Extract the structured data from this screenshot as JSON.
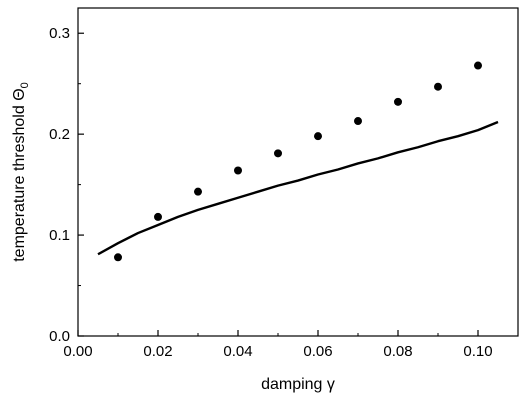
{
  "chart_data": {
    "type": "scatter",
    "title": "",
    "xlabel": "damping γ",
    "ylabel": "temperature threshold Θ",
    "ylabel_subscript": "0",
    "xlim": [
      0.0,
      0.11
    ],
    "ylim": [
      0.0,
      0.325
    ],
    "x_ticks": [
      "0.00",
      "0.02",
      "0.04",
      "0.06",
      "0.08",
      "0.10"
    ],
    "y_ticks": [
      "0.0",
      "0.1",
      "0.2",
      "0.3"
    ],
    "grid": false,
    "series": [
      {
        "type": "scatter",
        "x": [
          0.01,
          0.02,
          0.03,
          0.04,
          0.05,
          0.06,
          0.07,
          0.08,
          0.09,
          0.1
        ],
        "y": [
          0.078,
          0.118,
          0.143,
          0.164,
          0.181,
          0.198,
          0.213,
          0.232,
          0.247,
          0.268
        ]
      },
      {
        "type": "line",
        "x": [
          0.005,
          0.01,
          0.015,
          0.02,
          0.025,
          0.03,
          0.035,
          0.04,
          0.045,
          0.05,
          0.055,
          0.06,
          0.065,
          0.07,
          0.075,
          0.08,
          0.085,
          0.09,
          0.095,
          0.1,
          0.105
        ],
        "y": [
          0.081,
          0.092,
          0.102,
          0.11,
          0.118,
          0.125,
          0.131,
          0.137,
          0.143,
          0.149,
          0.154,
          0.16,
          0.165,
          0.171,
          0.176,
          0.182,
          0.187,
          0.193,
          0.198,
          0.204,
          0.212
        ]
      }
    ]
  }
}
